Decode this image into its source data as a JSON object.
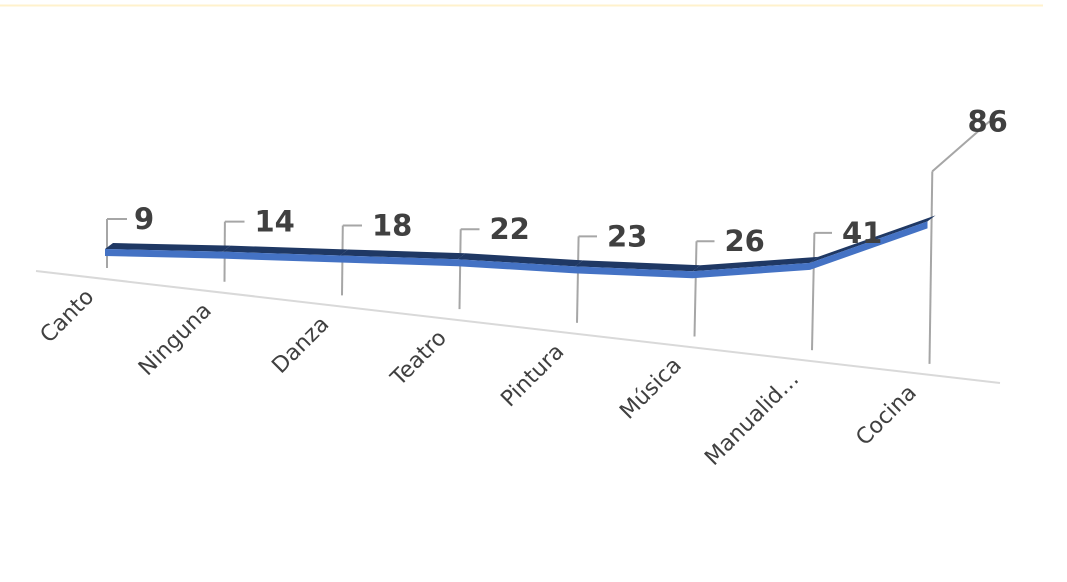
{
  "chart_data": {
    "type": "line",
    "style": "3d-line",
    "categories": [
      "Canto",
      "Ninguna",
      "Danza",
      "Teatro",
      "Pintura",
      "Música",
      "Manualid…",
      "Cocina"
    ],
    "series": [
      {
        "values": [
          9,
          14,
          18,
          22,
          23,
          26,
          41,
          86
        ]
      }
    ],
    "data_labels": [
      "9",
      "14",
      "18",
      "22",
      "23",
      "26",
      "41",
      "86"
    ],
    "line_color": "#4472c4",
    "line_dark_color": "#1f3864",
    "leader_color": "#a6a6a6",
    "axis_color": "#d9d9d9",
    "top_rule_color": "#fff2cc",
    "grid": false,
    "legend": "none"
  }
}
